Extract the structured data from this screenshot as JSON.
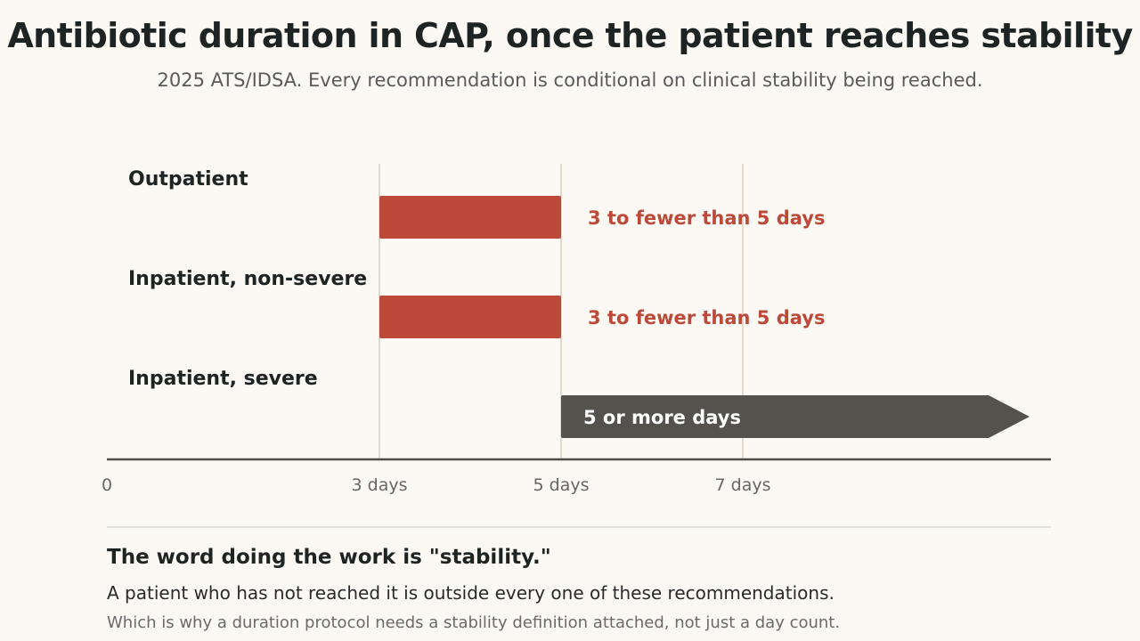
{
  "header": {
    "title": "Antibiotic duration in CAP, once the patient reaches stability",
    "subtitle": "2025 ATS/IDSA. Every recommendation is conditional on clinical stability being reached."
  },
  "chart_data": {
    "type": "bar",
    "orientation": "horizontal",
    "x_unit": "days",
    "xlim": [
      0,
      13
    ],
    "x_ticks": [
      {
        "value": 0,
        "label": "0"
      },
      {
        "value": 3,
        "label": "3 days"
      },
      {
        "value": 5,
        "label": "5 days"
      },
      {
        "value": 7,
        "label": "7 days"
      }
    ],
    "gridlines_at": [
      3,
      5,
      7
    ],
    "rows": [
      {
        "label": "Outpatient",
        "start": 3,
        "end": 5,
        "open_ended": false,
        "bar_label": "3 to fewer than 5 days",
        "color": "#bb4a3a"
      },
      {
        "label": "Inpatient, non-severe",
        "start": 3,
        "end": 5,
        "open_ended": false,
        "bar_label": "3 to fewer than 5 days",
        "color": "#bb4a3a"
      },
      {
        "label": "Inpatient, severe",
        "start": 5,
        "end": null,
        "open_ended": true,
        "bar_label": "5 or more days",
        "color": "#55514c"
      }
    ]
  },
  "note": {
    "heading": "The word doing the work is \"stability.\"",
    "body": "A patient who has not reached it is outside every one of these recommendations.",
    "footnote": "Which is why a duration protocol needs a stability definition attached, not just a day count."
  }
}
